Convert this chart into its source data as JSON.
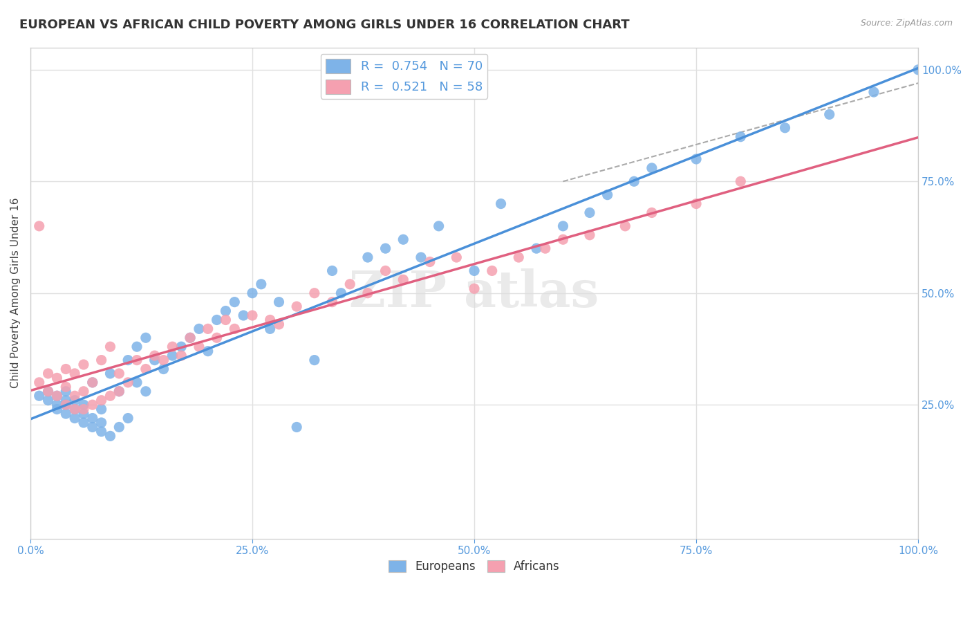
{
  "title": "EUROPEAN VS AFRICAN CHILD POVERTY AMONG GIRLS UNDER 16 CORRELATION CHART",
  "source": "Source: ZipAtlas.com",
  "ylabel": "Child Poverty Among Girls Under 16",
  "legend_r1": "0.754",
  "legend_n1": "70",
  "legend_r2": "0.521",
  "legend_n2": "58",
  "legend_label1": "Europeans",
  "legend_label2": "Africans",
  "blue_color": "#7EB3E8",
  "pink_color": "#F5A0B0",
  "blue_line_color": "#4A90D9",
  "pink_line_color": "#E06080",
  "blue_scatter_x": [
    0.01,
    0.02,
    0.02,
    0.03,
    0.03,
    0.03,
    0.04,
    0.04,
    0.04,
    0.04,
    0.05,
    0.05,
    0.05,
    0.06,
    0.06,
    0.06,
    0.07,
    0.07,
    0.07,
    0.08,
    0.08,
    0.08,
    0.09,
    0.09,
    0.1,
    0.1,
    0.11,
    0.11,
    0.12,
    0.12,
    0.13,
    0.13,
    0.14,
    0.15,
    0.16,
    0.17,
    0.18,
    0.19,
    0.2,
    0.21,
    0.22,
    0.23,
    0.24,
    0.25,
    0.26,
    0.27,
    0.28,
    0.3,
    0.32,
    0.34,
    0.35,
    0.38,
    0.4,
    0.42,
    0.44,
    0.46,
    0.5,
    0.53,
    0.57,
    0.6,
    0.63,
    0.65,
    0.68,
    0.7,
    0.75,
    0.8,
    0.85,
    0.9,
    0.95,
    1.0
  ],
  "blue_scatter_y": [
    0.27,
    0.26,
    0.28,
    0.25,
    0.24,
    0.27,
    0.23,
    0.25,
    0.26,
    0.28,
    0.22,
    0.24,
    0.26,
    0.21,
    0.23,
    0.25,
    0.2,
    0.22,
    0.3,
    0.19,
    0.21,
    0.24,
    0.18,
    0.32,
    0.2,
    0.28,
    0.22,
    0.35,
    0.3,
    0.38,
    0.28,
    0.4,
    0.35,
    0.33,
    0.36,
    0.38,
    0.4,
    0.42,
    0.37,
    0.44,
    0.46,
    0.48,
    0.45,
    0.5,
    0.52,
    0.42,
    0.48,
    0.2,
    0.35,
    0.55,
    0.5,
    0.58,
    0.6,
    0.62,
    0.58,
    0.65,
    0.55,
    0.7,
    0.6,
    0.65,
    0.68,
    0.72,
    0.75,
    0.78,
    0.8,
    0.85,
    0.87,
    0.9,
    0.95,
    1.0
  ],
  "pink_scatter_x": [
    0.01,
    0.01,
    0.02,
    0.02,
    0.03,
    0.03,
    0.04,
    0.04,
    0.04,
    0.05,
    0.05,
    0.05,
    0.06,
    0.06,
    0.06,
    0.07,
    0.07,
    0.08,
    0.08,
    0.09,
    0.09,
    0.1,
    0.1,
    0.11,
    0.12,
    0.13,
    0.14,
    0.15,
    0.16,
    0.17,
    0.18,
    0.19,
    0.2,
    0.21,
    0.22,
    0.23,
    0.25,
    0.27,
    0.28,
    0.3,
    0.32,
    0.34,
    0.36,
    0.38,
    0.4,
    0.42,
    0.45,
    0.48,
    0.5,
    0.52,
    0.55,
    0.58,
    0.6,
    0.63,
    0.67,
    0.7,
    0.75,
    0.8
  ],
  "pink_scatter_y": [
    0.3,
    0.65,
    0.28,
    0.32,
    0.27,
    0.31,
    0.25,
    0.29,
    0.33,
    0.24,
    0.27,
    0.32,
    0.24,
    0.28,
    0.34,
    0.25,
    0.3,
    0.26,
    0.35,
    0.27,
    0.38,
    0.28,
    0.32,
    0.3,
    0.35,
    0.33,
    0.36,
    0.35,
    0.38,
    0.36,
    0.4,
    0.38,
    0.42,
    0.4,
    0.44,
    0.42,
    0.45,
    0.44,
    0.43,
    0.47,
    0.5,
    0.48,
    0.52,
    0.5,
    0.55,
    0.53,
    0.57,
    0.58,
    0.51,
    0.55,
    0.58,
    0.6,
    0.62,
    0.63,
    0.65,
    0.68,
    0.7,
    0.75
  ],
  "xlim": [
    0.0,
    1.0
  ],
  "ylim": [
    -0.05,
    1.05
  ],
  "xticks": [
    0.0,
    0.25,
    0.5,
    0.75,
    1.0
  ],
  "xtick_labels": [
    "0.0%",
    "25.0%",
    "50.0%",
    "75.0%",
    "100.0%"
  ],
  "yticks": [
    0.25,
    0.5,
    0.75,
    1.0
  ],
  "ytick_labels_right": [
    "25.0%",
    "50.0%",
    "75.0%",
    "100.0%"
  ],
  "grid_color": "#E0E0E0",
  "background_color": "#FFFFFF",
  "title_fontsize": 13,
  "axis_label_fontsize": 11,
  "tick_fontsize": 11,
  "tick_color": "#5599DD"
}
